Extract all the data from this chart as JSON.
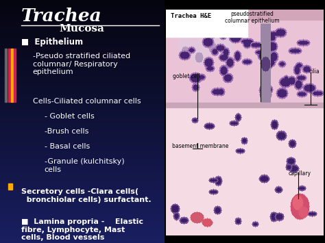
{
  "title": "Trachea",
  "subtitle": "Mucosa",
  "bg_color_top": "#050510",
  "bg_color_bottom": "#1a2060",
  "right_panel_label": "Trachea H&E",
  "sidebar_colors": [
    "#555555",
    "#cc3366",
    "#ffaa00",
    "#cc3366"
  ],
  "text_items": [
    {
      "indent": 0,
      "bullet": true,
      "bold": true,
      "text": "Epithelium"
    },
    {
      "indent": 1,
      "bullet": false,
      "bold": false,
      "text": "-Pseudo stratified ciliated\ncolumnar/ Respiratory\nepithelium"
    },
    {
      "indent": 1,
      "bullet": false,
      "bold": false,
      "text": "Cells-Ciliated columnar cells"
    },
    {
      "indent": 2,
      "bullet": false,
      "bold": false,
      "text": "- Goblet cells"
    },
    {
      "indent": 2,
      "bullet": false,
      "bold": false,
      "text": "-Brush cells"
    },
    {
      "indent": 2,
      "bullet": false,
      "bold": false,
      "text": "- Basal cells"
    },
    {
      "indent": 2,
      "bullet": false,
      "bold": false,
      "text": "-Granule (kulchitsky)\ncells"
    }
  ],
  "text_items2": [
    {
      "indent": 0,
      "bullet": false,
      "bold": true,
      "text": "Secretory cells -Clara cells(\n  bronchiolar cells) surfactant."
    },
    {
      "indent": 0,
      "bullet": true,
      "bold": true,
      "text": "Lamina propria -    Elastic\nfibre, Lymphocyte, Mast\ncells, Blood vessels"
    }
  ],
  "figsize": [
    4.74,
    3.55
  ],
  "dpi": 100
}
